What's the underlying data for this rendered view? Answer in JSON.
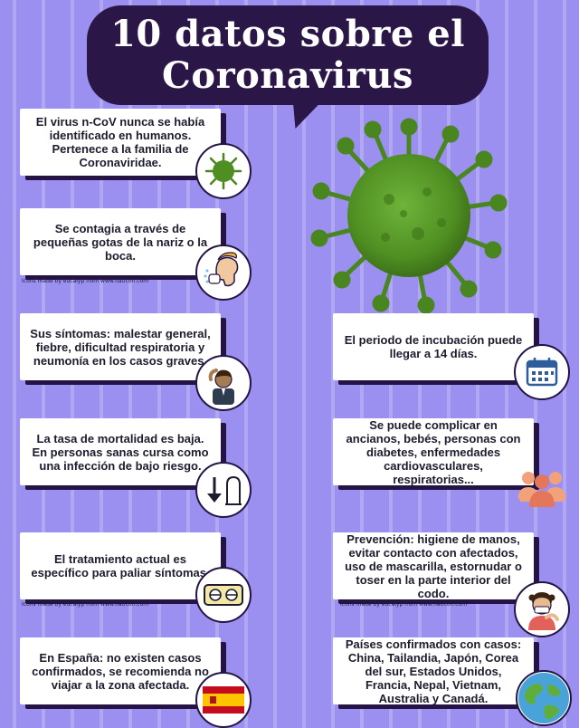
{
  "title": {
    "line1": "10 datos sobre el",
    "line2": "Coronavirus"
  },
  "facts": [
    {
      "text": "El virus n-CoV nunca se había identificado en humanos. Pertenece a la familia de Coronaviridae.",
      "icon": "virus-icon"
    },
    {
      "text": "Se contagia a través de pequeñas gotas de la nariz o la boca.",
      "icon": "sneezing-person-icon"
    },
    {
      "text": "Sus síntomas: malestar general, fiebre, dificultad respiratoria y neumonía en los casos graves.",
      "icon": "sick-person-icon"
    },
    {
      "text": "El periodo de incubación puede llegar a 14 días.",
      "icon": "calendar-icon"
    },
    {
      "text": "La tasa de mortalidad es baja. En personas sanas cursa como una infección de bajo riesgo.",
      "icon": "down-arrow-gravestone-icon"
    },
    {
      "text": "Se puede complicar en ancianos, bebés, personas con diabetes, enfermedades cardiovasculares, respiratorias...",
      "icon": "group-people-icon"
    },
    {
      "text": "El tratamiento actual es específico para paliar síntomas.",
      "icon": "pills-icon"
    },
    {
      "text": "Prevención: higiene de manos, evitar contacto con afectados, uso de mascarilla, estornudar o toser en la parte interior del codo.",
      "icon": "mask-person-icon"
    },
    {
      "text": "En España: no existen casos confirmados, se recomienda no viajar a la zona afectada.",
      "icon": "spain-flag-icon"
    },
    {
      "text": "Países confirmados con casos: China, Tailandia, Japón, Corea del sur, Estados Unidos, Francia, Nepal, Vietnam, Australia y Canadá.",
      "icon": "globe-icon"
    }
  ],
  "credits": {
    "credit1": "Icons made by eucalyp from www.flaticon.com",
    "credit2": "Icons made by eucalyp from www.flaticon.com",
    "credit3": "Icons made by eucalyp from www.flaticon.com"
  },
  "colors": {
    "background": "#9b8ff0",
    "title_bg": "#2a1647",
    "virus_green": "#5a9b2a"
  }
}
